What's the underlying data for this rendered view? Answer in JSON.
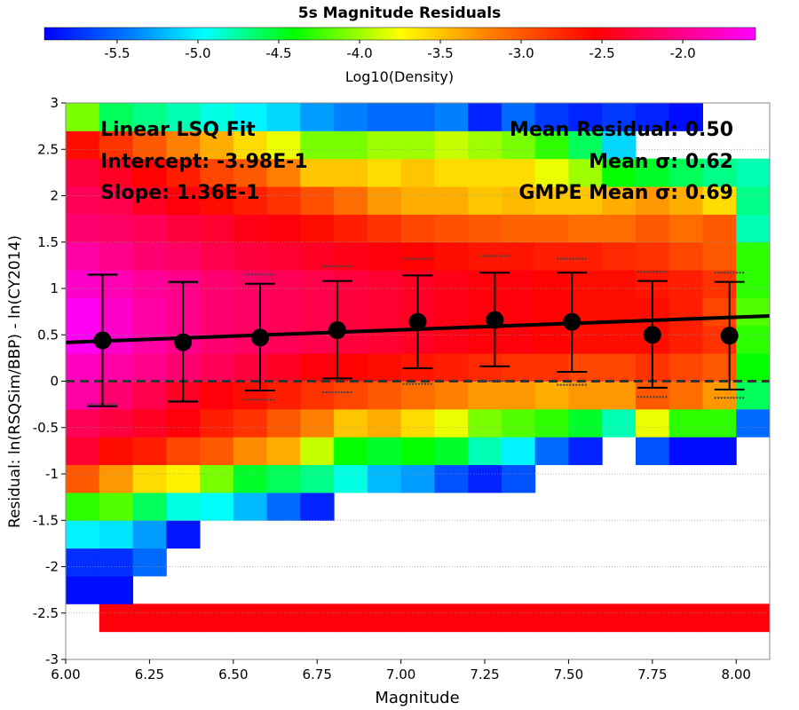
{
  "chart_data": {
    "type": "heatmap",
    "title": "5s Magnitude Residuals",
    "xlabel": "Magnitude",
    "ylabel": "Residual: ln(RSQSim/BBP) - ln(CY2014)",
    "xlim": [
      6.0,
      8.1
    ],
    "ylim": [
      -3,
      3
    ],
    "x_ticks": [
      "6.00",
      "6.25",
      "6.50",
      "6.75",
      "7.00",
      "7.25",
      "7.50",
      "7.75",
      "8.00"
    ],
    "y_ticks": [
      "3",
      "2.5",
      "2",
      "1.5",
      "1",
      "0.5",
      "0",
      "-0.5",
      "-1",
      "-1.5",
      "-2",
      "-2.5",
      "-3"
    ],
    "colorbar": {
      "label": "Log10(Density)",
      "ticks": [
        "-5.5",
        "-5.0",
        "-4.5",
        "-4.0",
        "-3.5",
        "-3.0",
        "-2.5",
        "-2.0"
      ],
      "range": [
        -5.95,
        -1.55
      ]
    },
    "grid": true,
    "zero_line": 0,
    "bin_x": {
      "start": 6.0,
      "width": 0.1,
      "count": 21
    },
    "bin_y": {
      "start": -2.7,
      "width": 0.3,
      "count": 19
    },
    "density_rows": [
      [
        null,
        -2.5,
        -2.5,
        -2.5,
        -2.5,
        -2.5,
        -2.5,
        -2.5,
        -2.5,
        -2.5,
        -2.5,
        -2.5,
        -2.5,
        -2.5,
        -2.5,
        -2.5,
        -2.5,
        -2.5,
        -2.5,
        -2.5,
        -2.5
      ],
      [
        -5.9,
        -5.9,
        null,
        null,
        null,
        null,
        null,
        null,
        null,
        null,
        null,
        null,
        null,
        null,
        null,
        null,
        null,
        null,
        null,
        null,
        null
      ],
      [
        -5.75,
        -5.75,
        -5.5,
        null,
        null,
        null,
        null,
        null,
        null,
        null,
        null,
        null,
        null,
        null,
        null,
        null,
        null,
        null,
        null,
        null,
        null
      ],
      [
        -5.0,
        -5.05,
        -5.3,
        -5.85,
        null,
        null,
        null,
        null,
        null,
        null,
        null,
        null,
        null,
        null,
        null,
        null,
        null,
        null,
        null,
        null,
        null
      ],
      [
        -4.3,
        -4.2,
        -4.6,
        -4.9,
        -4.95,
        -5.2,
        -5.5,
        -5.8,
        null,
        null,
        null,
        null,
        null,
        null,
        null,
        null,
        null,
        null,
        null,
        null,
        null
      ],
      [
        -3.0,
        -3.3,
        -3.6,
        -3.7,
        -4.1,
        -4.5,
        -4.6,
        -4.7,
        -4.9,
        -5.2,
        -5.3,
        -5.6,
        -5.8,
        -5.6,
        null,
        null,
        null,
        null,
        null,
        null,
        null
      ],
      [
        -2.35,
        -2.6,
        -2.7,
        -2.9,
        -3.0,
        -3.25,
        -3.4,
        -3.9,
        -4.4,
        -4.5,
        -4.4,
        -4.5,
        -4.8,
        -5.0,
        -5.5,
        -5.8,
        null,
        -5.6,
        -5.9,
        -5.9,
        null
      ],
      [
        -2.2,
        -2.3,
        -2.4,
        -2.5,
        -2.7,
        -2.8,
        -3.0,
        -3.2,
        -3.5,
        -3.4,
        -3.6,
        -3.8,
        -4.1,
        -4.2,
        -4.3,
        -4.5,
        -4.8,
        -3.8,
        -4.3,
        -4.3,
        -5.5
      ],
      [
        -1.9,
        -2.1,
        -2.25,
        -2.4,
        -2.5,
        -2.6,
        -2.7,
        -2.8,
        -2.9,
        -3.0,
        -3.1,
        -3.2,
        -3.3,
        -3.3,
        -3.4,
        -3.3,
        -3.3,
        -3.0,
        -3.1,
        -3.3,
        -4.6
      ],
      [
        -1.8,
        -1.9,
        -2.0,
        -2.1,
        -2.2,
        -2.3,
        -2.4,
        -2.5,
        -2.55,
        -2.6,
        -2.65,
        -2.7,
        -2.75,
        -2.8,
        -2.8,
        -2.9,
        -2.9,
        -2.8,
        -2.9,
        -3.0,
        -4.4
      ],
      [
        -1.6,
        -1.75,
        -1.9,
        -2.0,
        -2.1,
        -2.15,
        -2.2,
        -2.25,
        -2.3,
        -2.35,
        -2.4,
        -2.45,
        -2.5,
        -2.5,
        -2.55,
        -2.6,
        -2.6,
        -2.6,
        -2.7,
        -2.8,
        -4.3
      ],
      [
        -1.6,
        -1.75,
        -1.9,
        -2.0,
        -2.1,
        -2.15,
        -2.2,
        -2.25,
        -2.3,
        -2.35,
        -2.4,
        -2.45,
        -2.5,
        -2.5,
        -2.55,
        -2.6,
        -2.6,
        -2.6,
        -2.7,
        -2.9,
        -4.2
      ],
      [
        -1.75,
        -1.85,
        -1.95,
        -2.0,
        -2.1,
        -2.15,
        -2.2,
        -2.25,
        -2.3,
        -2.35,
        -2.4,
        -2.45,
        -2.5,
        -2.5,
        -2.55,
        -2.6,
        -2.6,
        -2.65,
        -2.7,
        -2.8,
        -4.3
      ],
      [
        -1.9,
        -2.0,
        -2.1,
        -2.15,
        -2.25,
        -2.3,
        -2.35,
        -2.4,
        -2.45,
        -2.5,
        -2.55,
        -2.6,
        -2.65,
        -2.65,
        -2.7,
        -2.7,
        -2.75,
        -2.8,
        -2.9,
        -3.0,
        -4.3
      ],
      [
        -2.1,
        -2.15,
        -2.2,
        -2.3,
        -2.35,
        -2.45,
        -2.5,
        -2.6,
        -2.7,
        -2.8,
        -2.9,
        -2.95,
        -3.0,
        -3.05,
        -3.05,
        -3.1,
        -3.1,
        -3.0,
        -3.1,
        -3.0,
        -4.8
      ],
      [
        -2.2,
        -2.25,
        -2.4,
        -2.5,
        -2.6,
        -2.7,
        -2.8,
        -2.95,
        -3.1,
        -3.3,
        -3.4,
        -3.4,
        -3.5,
        -3.45,
        -3.5,
        -3.5,
        -3.4,
        -3.3,
        -3.4,
        -3.6,
        -4.7
      ],
      [
        -2.3,
        -2.4,
        -2.55,
        -2.7,
        -2.9,
        -3.0,
        -3.2,
        -3.5,
        -3.5,
        -3.6,
        -3.5,
        -3.6,
        -3.6,
        -3.6,
        -3.8,
        -4.0,
        -4.4,
        -4.5,
        -4.6,
        -4.7,
        -4.8
      ],
      [
        -2.6,
        -2.8,
        -3.0,
        -3.2,
        -3.4,
        -3.6,
        -3.8,
        -4.1,
        -4.1,
        -4.0,
        -4.0,
        -3.9,
        -4.0,
        -4.1,
        -4.3,
        -4.6,
        -5.1,
        null,
        null,
        null,
        null
      ],
      [
        -4.1,
        -4.6,
        -4.7,
        -4.8,
        -4.9,
        -5.0,
        -5.1,
        -5.3,
        -5.4,
        -5.5,
        -5.5,
        -5.4,
        -5.8,
        -5.5,
        -5.7,
        -5.8,
        -5.7,
        -5.8,
        -5.9,
        null,
        null
      ]
    ],
    "binned_stats": {
      "x": [
        6.11,
        6.35,
        6.58,
        6.81,
        7.05,
        7.28,
        7.51,
        7.75,
        7.98
      ],
      "mean": [
        0.44,
        0.42,
        0.47,
        0.55,
        0.64,
        0.66,
        0.64,
        0.5,
        0.49
      ],
      "err_low": [
        -0.27,
        -0.22,
        -0.1,
        0.03,
        0.14,
        0.16,
        0.1,
        -0.07,
        -0.09
      ],
      "err_high": [
        1.15,
        1.07,
        1.05,
        1.08,
        1.14,
        1.17,
        1.17,
        1.08,
        1.07
      ],
      "gmpe_low": [
        -0.25,
        -0.21,
        -0.2,
        -0.12,
        -0.03,
        0.0,
        -0.04,
        -0.17,
        -0.18
      ],
      "gmpe_high": [
        1.14,
        1.06,
        1.15,
        1.24,
        1.32,
        1.35,
        1.32,
        1.18,
        1.17
      ]
    },
    "fit_line": {
      "intercept": -0.398,
      "slope": 0.136
    },
    "annotations": {
      "left": [
        "Linear LSQ Fit",
        "Intercept: -3.98E-1",
        "Slope: 1.36E-1"
      ],
      "right": [
        "Mean Residual: 0.50",
        "Mean σ: 0.62",
        "GMPE Mean σ: 0.69"
      ]
    }
  }
}
